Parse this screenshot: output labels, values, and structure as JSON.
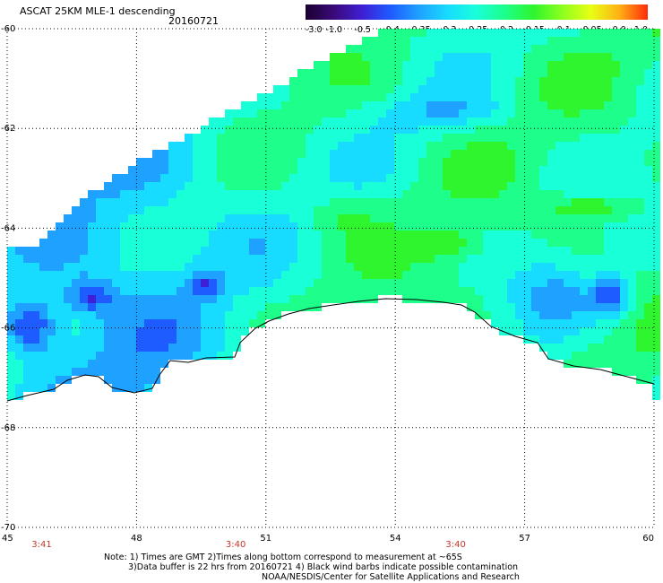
{
  "header": {
    "title": "ASCAT 25KM MLE-1 descending",
    "date": "20160721"
  },
  "colorbar": {
    "labels": [
      "-3.0",
      "-1.0",
      "-0.5",
      "-0.4",
      "-0.35",
      "-0.3",
      "-0.25",
      "-0.2",
      "-0.15",
      "-0.1",
      "-0.05",
      "0.0",
      "1.0"
    ],
    "colors": [
      "#1a0030",
      "#3a0a7a",
      "#3f1fd6",
      "#1e5cff",
      "#1fa2ff",
      "#18dcff",
      "#19ffd8",
      "#1dff8a",
      "#2ef52e",
      "#8dff1e",
      "#e8ff14",
      "#ffb014",
      "#ff2a0a"
    ]
  },
  "map": {
    "lat_labels": [
      "-60",
      "-62",
      "-64",
      "-66",
      "-68",
      "-70"
    ],
    "lon_labels": [
      "45",
      "48",
      "51",
      "54",
      "57",
      "60"
    ],
    "lat_range": [
      -60,
      -70
    ],
    "lon_range": [
      45,
      60
    ],
    "time_labels": [
      {
        "text": "3:41",
        "lon": 45.8
      },
      {
        "text": "3:40",
        "lon": 50.3
      },
      {
        "text": "3:40",
        "lon": 55.4
      }
    ]
  },
  "notes": {
    "line1": "Note: 1) Times are GMT 2)Times along bottom correspond to measurement at ~65S",
    "line2": "3)Data buffer is 22 hrs from 20160721 4) Black wind barbs indicate possible contamination",
    "line3": "NOAA/NESDIS/Center for Satellite Applications and Research"
  }
}
